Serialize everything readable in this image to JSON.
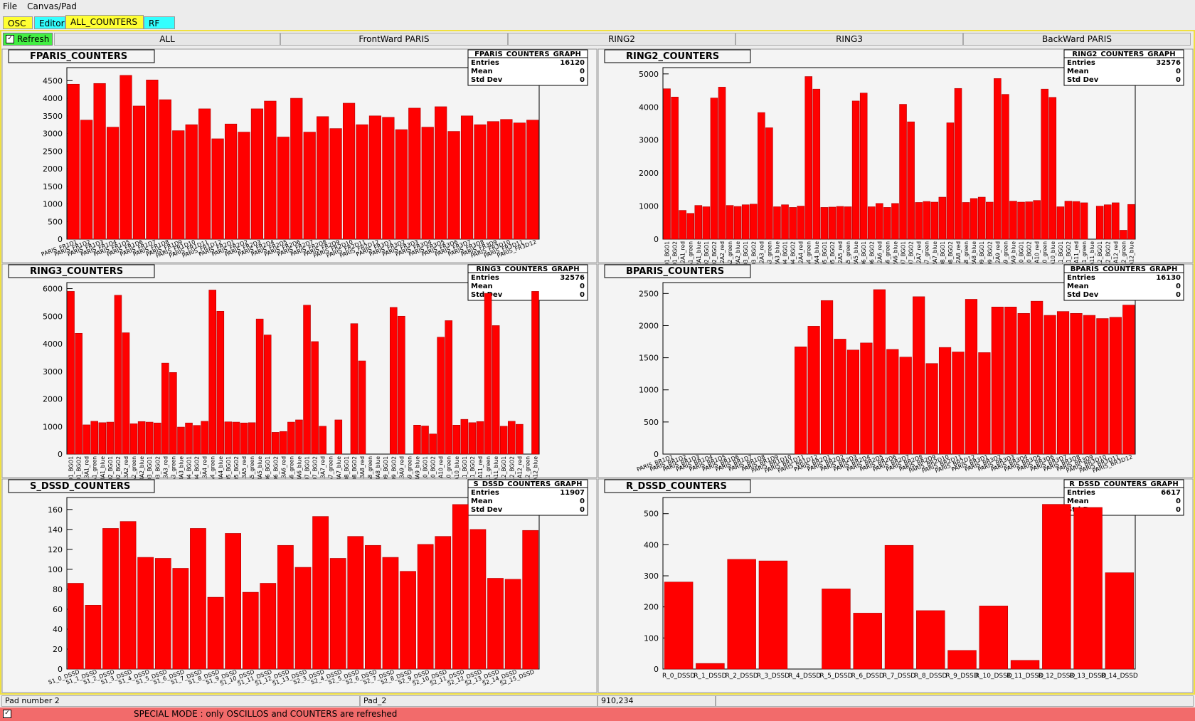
{
  "menu": [
    "File",
    "Canvas/Pad"
  ],
  "tabs": [
    "OSC",
    "Editor",
    "ALL_COUNTERS",
    "RF"
  ],
  "refresh": "Refresh",
  "subtabs": [
    "ALL",
    "FrontWard PARIS",
    "RING2",
    "RING3",
    "BackWard PARIS"
  ],
  "status": [
    "Pad number 2",
    "Pad_2",
    "910,234"
  ],
  "mode_message": "SPECIAL MODE : only OSCILLOS and COUNTERS are refreshed",
  "chart_data": [
    {
      "type": "bar",
      "title": "FPARIS_COUNTERS",
      "color": "#ff0000",
      "stats": {
        "title": "FPARIS_COUNTERS_GRAPH",
        "rows": [
          [
            "Entries",
            16120
          ],
          [
            "Mean",
            0
          ],
          [
            "Std Dev",
            0
          ]
        ]
      },
      "categories": [
        "PARIS_FR1D1",
        "PARIS_FR1D2",
        "PARIS_FR1D3",
        "PARIS_FR1D4",
        "PARIS_FR1D5",
        "PARIS_FR1D6",
        "PARIS_FR1D7",
        "PARIS_FR1D8",
        "PARIS_FR1D9",
        "PARIS_FR1D10",
        "PARIS_FR1D11",
        "PARIS_FR1D12",
        "PARIS_FR2D1",
        "PARIS_FR2D2",
        "PARIS_FR2D3",
        "PARIS_FR2D4",
        "PARIS_FR2D5",
        "PARIS_FR2D6",
        "PARIS_FR2D7",
        "PARIS_FR2D8",
        "PARIS_FR2D9",
        "PARIS_FR2D10",
        "PARIS_FR2D11",
        "PARIS_FR2D12",
        "PARIS_FR3D1",
        "PARIS_FR3D2",
        "PARIS_FR3D3",
        "PARIS_FR3D4",
        "PARIS_FR3D5",
        "PARIS_FR3D6",
        "PARIS_FR3D7",
        "PARIS_FR3D8",
        "PARIS_FR3D9",
        "PARIS_FR3D10",
        "PARIS_FR3D11",
        "PARIS_FR3D12"
      ],
      "values": [
        4400,
        3380,
        4420,
        3180,
        4650,
        3780,
        4520,
        3960,
        3080,
        3250,
        3700,
        2850,
        3270,
        3040,
        3700,
        3920,
        2900,
        4000,
        3040,
        3480,
        3140,
        3860,
        3250,
        3500,
        3460,
        3110,
        3720,
        3180,
        3760,
        3060,
        3500,
        3250,
        3340,
        3400,
        3300,
        3380
      ],
      "ylim": [
        0,
        4870
      ],
      "yticks": [
        0,
        500,
        1000,
        1500,
        2000,
        2500,
        3000,
        3500,
        4000,
        4500
      ]
    },
    {
      "type": "bar",
      "title": "RING2_COUNTERS",
      "color": "#ff0000",
      "stats": {
        "title": "RING2_COUNTERS_GRAPH",
        "rows": [
          [
            "Entries",
            32576
          ],
          [
            "Mean",
            0
          ],
          [
            "Std Dev",
            0
          ]
        ]
      },
      "categories": [
        "R2D1_BGO1",
        "R2D1_BGO2",
        "R2A1_red",
        "R2A1_green",
        "R2A1_blue",
        "R2D2_BGO1",
        "R2D2_BGO2",
        "R2A2_red",
        "R2A2_green",
        "R2A2_blue",
        "R2D3_BGO1",
        "R2D3_BGO2",
        "R2A3_red",
        "R2A3_green",
        "R2A3_blue",
        "R2D4_BGO1",
        "R2D4_BGO2",
        "R2A4_red",
        "R2A4_green",
        "R2A4_blue",
        "R2D5_BGO1",
        "R2D5_BGO2",
        "R2A5_red",
        "R2A5_green",
        "R2A5_blue",
        "R2D6_BGO1",
        "R2D6_BGO2",
        "R2A6_red",
        "R2A6_green",
        "R2A6_blue",
        "R2D7_BGO1",
        "R2D7_BGO2",
        "R2A7_red",
        "R2A7_green",
        "R2A7_blue",
        "R2D8_BGO1",
        "R2D8_BGO2",
        "R2A8_red",
        "R2A8_green",
        "R2A8_blue",
        "R2D9_BGO1",
        "R2D9_BGO2",
        "R2A9_red",
        "R2A9_green",
        "R2A9_blue",
        "R2D10_BGO1",
        "R2D10_BGO2",
        "R2A10_red",
        "R2A10_green",
        "R2A10_blue",
        "R2D11_BGO1",
        "R2D11_BGO2",
        "R2A11_red",
        "R2A11_green",
        "R2A11_blue",
        "R2D12_BGO1",
        "R2D12_BGO2",
        "R2A12_red",
        "R2A12_green",
        "R2A12_blue"
      ],
      "values": [
        4550,
        4300,
        870,
        780,
        1020,
        980,
        4270,
        4600,
        1020,
        990,
        1040,
        1060,
        3830,
        3370,
        980,
        1040,
        960,
        1000,
        4920,
        4540,
        960,
        970,
        990,
        980,
        4180,
        4420,
        980,
        1080,
        960,
        1080,
        4080,
        3550,
        1110,
        1140,
        1120,
        1270,
        3520,
        4560,
        1110,
        1230,
        1270,
        1120,
        4860,
        4380,
        1150,
        1120,
        1130,
        1170,
        4540,
        4290,
        980,
        1150,
        1140,
        1100,
        0,
        1000,
        1040,
        1100,
        270,
        1050
      ],
      "ylim": [
        0,
        5190
      ],
      "yticks": [
        0,
        1000,
        2000,
        3000,
        4000,
        5000
      ]
    },
    {
      "type": "bar",
      "title": "RING3_COUNTERS",
      "color": "#ff0000",
      "stats": {
        "title": "RING3_COUNTERS_GRAPH",
        "rows": [
          [
            "Entries",
            32576
          ],
          [
            "Mean",
            0
          ],
          [
            "Std Dev",
            0
          ]
        ]
      },
      "categories": [
        "R3D1_BGO1",
        "R3D1_BGO2",
        "R3A1_red",
        "R3A1_green",
        "R3A1_blue",
        "R3D2_BGO1",
        "R3D2_BGO2",
        "R3A2_red",
        "R3A2_green",
        "R3A2_blue",
        "R3D3_BGO1",
        "R3D3_BGO2",
        "R3A3_red",
        "R3A3_green",
        "R3A3_blue",
        "R3D4_BGO1",
        "R3D4_BGO2",
        "R3A4_red",
        "R3A4_green",
        "R3A4_blue",
        "R3D5_BGO1",
        "R3D5_BGO2",
        "R3A5_red",
        "R3A5_green",
        "R3A5_blue",
        "R3D6_BGO1",
        "R3D6_BGO2",
        "R3A6_red",
        "R3A6_green",
        "R3A6_blue",
        "R3D7_BGO1",
        "R3D7_BGO2",
        "R3A7_red",
        "R3A7_green",
        "R3A7_blue",
        "R3D8_BGO1",
        "R3D8_BGO2",
        "R3A8_red",
        "R3A8_green",
        "R3A8_blue",
        "R3D9_BGO1",
        "R3D9_BGO2",
        "R3A9_red",
        "R3A9_green",
        "R3A9_blue",
        "R3D10_BGO1",
        "R3D10_BGO2",
        "R3A10_red",
        "R3A10_green",
        "R3A10_blue",
        "R3D11_BGO1",
        "R3D11_BGO2",
        "R3A11_red",
        "R3A11_green",
        "R3A11_blue",
        "R3D12_BGO1",
        "R3D12_BGO2",
        "R3A12_red",
        "R3A12_green",
        "R3A12_blue"
      ],
      "values": [
        5900,
        4380,
        1060,
        1190,
        1140,
        1160,
        5760,
        4400,
        1100,
        1180,
        1160,
        1130,
        3300,
        2960,
        980,
        1130,
        1040,
        1190,
        5950,
        5180,
        1170,
        1160,
        1130,
        1140,
        4900,
        4320,
        790,
        820,
        1160,
        1240,
        5400,
        4080,
        1010,
        0,
        1240,
        0,
        4730,
        3380,
        0,
        0,
        0,
        5320,
        5000,
        0,
        1050,
        1020,
        730,
        4240,
        4840,
        1050,
        1260,
        1140,
        1180,
        5830,
        4660,
        1010,
        1190,
        1080,
        0,
        5900
      ],
      "ylim": [
        0,
        6220
      ],
      "yticks": [
        0,
        1000,
        2000,
        3000,
        4000,
        5000,
        6000
      ]
    },
    {
      "type": "bar",
      "title": "BPARIS_COUNTERS",
      "color": "#ff0000",
      "stats": {
        "title": "BPARIS_COUNTERS_GRAPH",
        "rows": [
          [
            "Entries",
            16130
          ],
          [
            "Mean",
            0
          ],
          [
            "Std Dev",
            0
          ]
        ]
      },
      "categories": [
        "PARIS_BR1D1",
        "PARIS_BR1D2",
        "PARIS_BR1D3",
        "PARIS_BR1D4",
        "PARIS_BR1D5",
        "PARIS_BR1D6",
        "PARIS_BR1D7",
        "PARIS_BR1D8",
        "PARIS_BR1D9",
        "PARIS_BR1D10",
        "PARIS_BR1D11",
        "PARIS_BR1D12",
        "PARIS_BR2D1",
        "PARIS_BR2D2",
        "PARIS_BR2D3",
        "PARIS_BR2D4",
        "PARIS_BR2D5",
        "PARIS_BR2D6",
        "PARIS_BR2D7",
        "PARIS_BR2D8",
        "PARIS_BR2D9",
        "PARIS_BR2D10",
        "PARIS_BR2D11",
        "PARIS_BR2D12",
        "PARIS_BR3D1",
        "PARIS_BR3D2",
        "PARIS_BR3D3",
        "PARIS_BR3D4",
        "PARIS_BR3D5",
        "PARIS_BR3D6",
        "PARIS_BR3D7",
        "PARIS_BR3D8",
        "PARIS_BR3D9",
        "PARIS_BR3D10",
        "PARIS_BR3D11",
        "PARIS_BR3D12"
      ],
      "values": [
        0,
        0,
        0,
        0,
        0,
        0,
        0,
        0,
        0,
        0,
        1670,
        1990,
        2390,
        1790,
        1620,
        1730,
        2560,
        1630,
        1510,
        2450,
        1410,
        1660,
        1590,
        2410,
        1580,
        2290,
        2290,
        2190,
        2380,
        2160,
        2220,
        2190,
        2160,
        2110,
        2130,
        2320
      ],
      "ylim": [
        0,
        2670
      ],
      "yticks": [
        0,
        500,
        1000,
        1500,
        2000,
        2500
      ]
    },
    {
      "type": "bar",
      "title": "S_DSSD_COUNTERS",
      "color": "#ff0000",
      "stats": {
        "title": "S_DSSD_COUNTERS_GRAPH",
        "rows": [
          [
            "Entries",
            11907
          ],
          [
            "Mean",
            0
          ],
          [
            "Std Dev",
            0
          ]
        ]
      },
      "categories": [
        "S1_0_DSSD",
        "S1_1_DSSD",
        "S1_2_DSSD",
        "S1_3_DSSD",
        "S1_4_DSSD",
        "S1_5_DSSD",
        "S1_6_DSSD",
        "S1_7_DSSD",
        "S1_8_DSSD",
        "S1_9_DSSD",
        "S1_10_DSSD",
        "S1_11_DSSD",
        "S1_12_DSSD",
        "S1_13_DSSD",
        "S2_3_DSSD",
        "S2_4_DSSD",
        "S2_5_DSSD",
        "S2_6_DSSD",
        "S2_7_DSSD",
        "S2_8_DSSD",
        "S2_9_DSSD",
        "S2_10_DSSD",
        "S2_11_DSSD",
        "S2_12_DSSD",
        "S2_13_DSSD",
        "S2_14_DSSD",
        "S2_15_DSSD"
      ],
      "values": [
        86,
        64,
        141,
        148,
        112,
        111,
        101,
        141,
        72,
        136,
        77,
        86,
        124,
        102,
        153,
        111,
        133,
        124,
        112,
        98,
        125,
        133,
        165,
        140,
        91,
        90,
        139
      ],
      "ylim": [
        0,
        172
      ],
      "yticks": [
        0,
        20,
        40,
        60,
        80,
        100,
        120,
        140,
        160
      ]
    },
    {
      "type": "bar",
      "title": "R_DSSD_COUNTERS",
      "color": "#ff0000",
      "stats": {
        "title": "R_DSSD_COUNTERS_GRAPH",
        "rows": [
          [
            "Entries",
            6617
          ],
          [
            "Mean",
            0
          ],
          [
            "Std Dev",
            0
          ]
        ]
      },
      "categories": [
        "R_0_DSSD",
        "R_1_DSSD",
        "R_2_DSSD",
        "R_3_DSSD",
        "R_4_DSSD",
        "R_5_DSSD",
        "R_6_DSSD",
        "R_7_DSSD",
        "R_8_DSSD",
        "R_9_DSSD",
        "R_10_DSSD",
        "R_11_DSSD",
        "R_12_DSSD",
        "R_13_DSSD",
        "R_14_DSSD"
      ],
      "values": [
        280,
        18,
        353,
        348,
        0,
        258,
        180,
        398,
        188,
        60,
        203,
        28,
        530,
        520,
        310
      ],
      "ylim": [
        0,
        552
      ],
      "yticks": [
        0,
        100,
        200,
        300,
        400,
        500
      ]
    }
  ]
}
